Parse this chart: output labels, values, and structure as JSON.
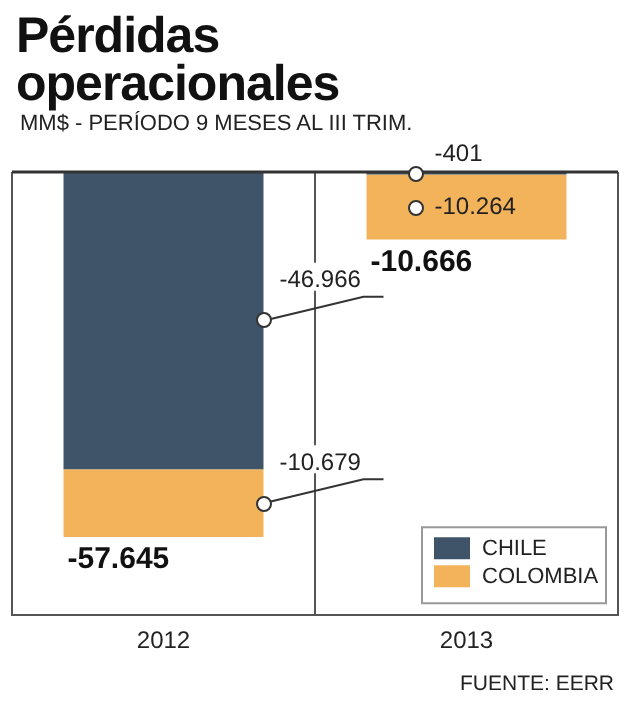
{
  "chart_data": {
    "type": "bar",
    "title": "Pérdidas operacionales",
    "subtitle": "MM$ - PERÍODO 9 MESES AL III TRIM.",
    "categories": [
      "2012",
      "2013"
    ],
    "stacked": true,
    "tick_labels": "x",
    "series": [
      {
        "name": "CHILE",
        "color": "#3f5468",
        "values": [
          -46966,
          -401
        ],
        "value_labels": [
          "-46.966",
          "-401"
        ]
      },
      {
        "name": "COLOMBIA",
        "color": "#f2b35b",
        "values": [
          -10679,
          -10264
        ],
        "value_labels": [
          "-10.679",
          "-10.264"
        ]
      }
    ],
    "totals": [
      "-57.645",
      "-10.666"
    ],
    "grid": "x",
    "legend": "bottom right",
    "annotations": [
      "FUENTE: EERR"
    ]
  }
}
